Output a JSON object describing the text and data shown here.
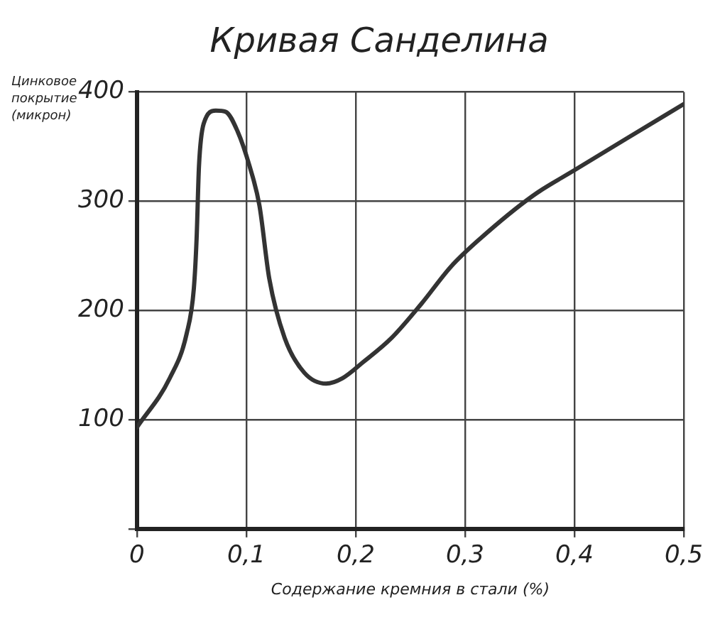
{
  "chart_data": {
    "type": "line",
    "title": "Кривая Санделина",
    "xlabel": "Содержание кремния в стали (%)",
    "ylabel": "Цинковое покрытие (микрон)",
    "series": [
      {
        "color": "#333333",
        "x": [
          0,
          0.03,
          0.0455,
          0.052,
          0.0545,
          0.0567,
          0.061,
          0.072,
          0.081,
          0.092,
          0.103,
          0.112,
          0.121,
          0.135,
          0.153,
          0.173,
          0.188,
          0.206,
          0.233,
          0.26,
          0.287,
          0.313,
          0.362,
          0.401,
          0.447,
          0.5
        ],
        "values": [
          93,
          138,
          179,
          220,
          265,
          332,
          371,
          383,
          382,
          364,
          332,
          296,
          229,
          175,
          143,
          133,
          138,
          152,
          175,
          206,
          240,
          265,
          305,
          329,
          357,
          389
        ]
      }
    ],
    "xlim": [
      0,
      0.5
    ],
    "xticks": [
      0,
      {
        "value": 0.1,
        "label": "0,1"
      },
      {
        "value": 0.2,
        "label": "0,2"
      },
      {
        "value": 0.3,
        "label": "0,3"
      },
      {
        "value": 0.4,
        "label": "0,4"
      },
      {
        "value": 0.5,
        "label": "0,5"
      }
    ],
    "ylim": [
      0,
      400
    ],
    "yticks": [
      {
        "value": 0,
        "label": null
      },
      100,
      200,
      300,
      400
    ],
    "grid": true,
    "legend": false,
    "marker": "none",
    "line_style": "solid"
  }
}
